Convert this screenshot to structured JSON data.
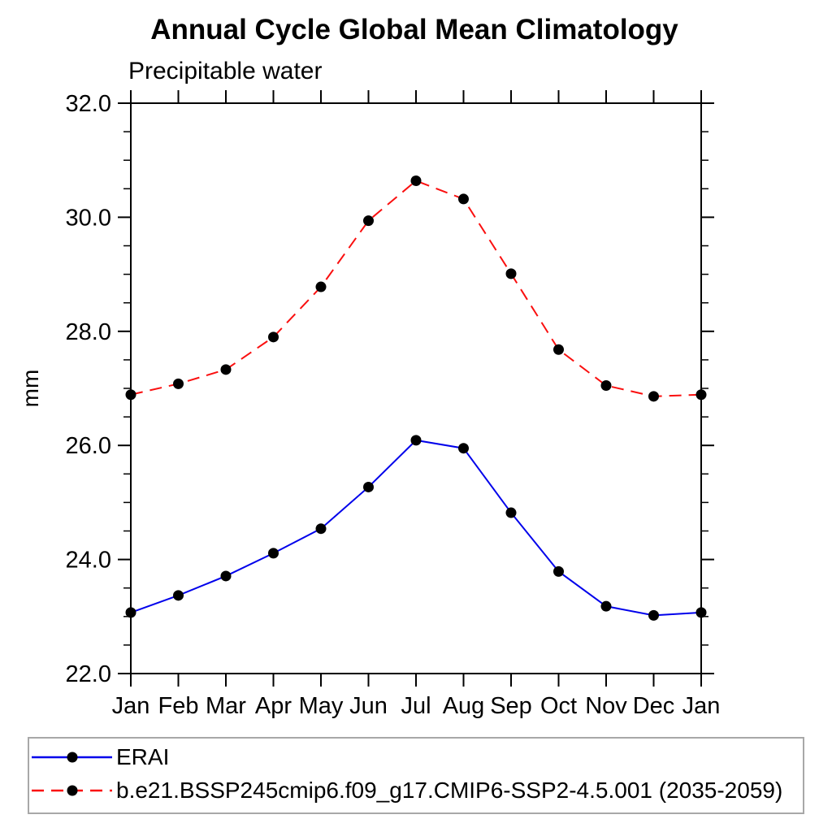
{
  "chart_data": {
    "type": "line",
    "title": "Annual Cycle Global Mean Climatology",
    "subtitle": "Precipitable water",
    "xlabel": "",
    "ylabel": "mm",
    "categories": [
      "Jan",
      "Feb",
      "Mar",
      "Apr",
      "May",
      "Jun",
      "Jul",
      "Aug",
      "Sep",
      "Oct",
      "Nov",
      "Dec",
      "Jan"
    ],
    "series": [
      {
        "name": "ERAI",
        "color": "#0000eb",
        "line_style": "solid",
        "marker": "filled-circle",
        "marker_color": "#000000",
        "values": [
          23.07,
          23.37,
          23.71,
          24.11,
          24.54,
          25.27,
          26.09,
          25.95,
          24.82,
          23.79,
          23.18,
          23.02,
          23.07
        ]
      },
      {
        "name": "b.e21.BSSP245cmip6.f09_g17.CMIP6-SSP2-4.5.001 (2035-2059)",
        "color": "#fa0f0f",
        "line_style": "dashed",
        "marker": "filled-circle",
        "marker_color": "#000000",
        "values": [
          26.89,
          27.08,
          27.33,
          27.9,
          28.78,
          29.94,
          30.64,
          30.32,
          29.01,
          27.68,
          27.05,
          26.86,
          26.89
        ]
      }
    ],
    "ylim": [
      22,
      32
    ],
    "yticks": {
      "values": [
        22,
        24,
        26,
        28,
        30,
        32
      ],
      "labels": [
        "22.0",
        "24.0",
        "26.0",
        "28.0",
        "30.0",
        "32.0"
      ]
    },
    "ytick_minor_step": 0.5,
    "grid": false,
    "legend": {
      "position": "bottom-left",
      "boxed": true,
      "border_color": "#a8a8a8"
    },
    "axis_color": "#000000"
  }
}
